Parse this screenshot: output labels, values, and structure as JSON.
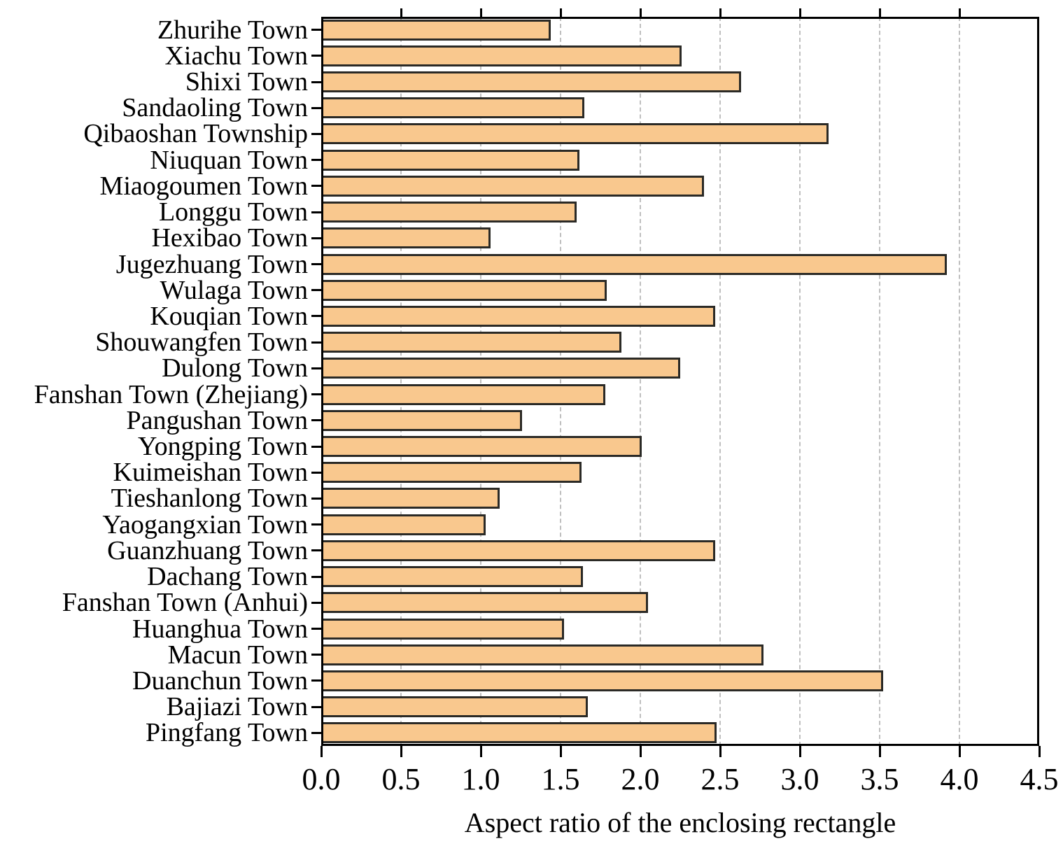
{
  "chart_data": {
    "type": "bar",
    "orientation": "horizontal",
    "title": "",
    "xlabel": "Aspect ratio of the enclosing rectangle",
    "ylabel": "",
    "xlim": [
      0,
      4.5
    ],
    "xticks": [
      0.0,
      0.5,
      1.0,
      1.5,
      2.0,
      2.5,
      3.0,
      3.5,
      4.0,
      4.5
    ],
    "xtick_labels": [
      "0.0",
      "0.5",
      "1.0",
      "1.5",
      "2.0",
      "2.5",
      "3.0",
      "3.5",
      "4.0",
      "4.5"
    ],
    "grid": "vertical dashed gridlines at every 0.5 from 0.5 to 4.0",
    "legend": "none",
    "categories": [
      "Zhurihe Town",
      "Xiachu Town",
      "Shixi Town",
      "Sandaoling Town",
      "Qibaoshan Township",
      "Niuquan Town",
      "Miaogoumen Town",
      "Longgu Town",
      "Hexibao Town",
      "Jugezhuang Town",
      "Wulaga Town",
      "Kouqian Town",
      "Shouwangfen Town",
      "Dulong Town",
      "Fanshan Town (Zhejiang)",
      "Pangushan Town",
      "Yongping Town",
      "Kuimeishan Town",
      "Tieshanlong Town",
      "Yaogangxian Town",
      "Guanzhuang Town",
      "Dachang Town",
      "Fanshan Town (Anhui)",
      "Huanghua Town",
      "Macun Town",
      "Duanchun Town",
      "Bajiazi Town",
      "Pingfang Town"
    ],
    "values": [
      1.44,
      2.26,
      2.63,
      1.65,
      3.18,
      1.62,
      2.4,
      1.6,
      1.06,
      3.92,
      1.79,
      2.47,
      1.88,
      2.25,
      1.78,
      1.26,
      2.01,
      1.63,
      1.12,
      1.03,
      2.47,
      1.64,
      2.05,
      1.52,
      2.77,
      3.52,
      1.67,
      2.48
    ],
    "colors": {
      "bar_fill": "#F9C88E",
      "bar_border": "#2B2A26",
      "gridline": "#BFBFBF",
      "axis": "#000000",
      "background": "#FFFFFF",
      "text": "#000000"
    }
  }
}
